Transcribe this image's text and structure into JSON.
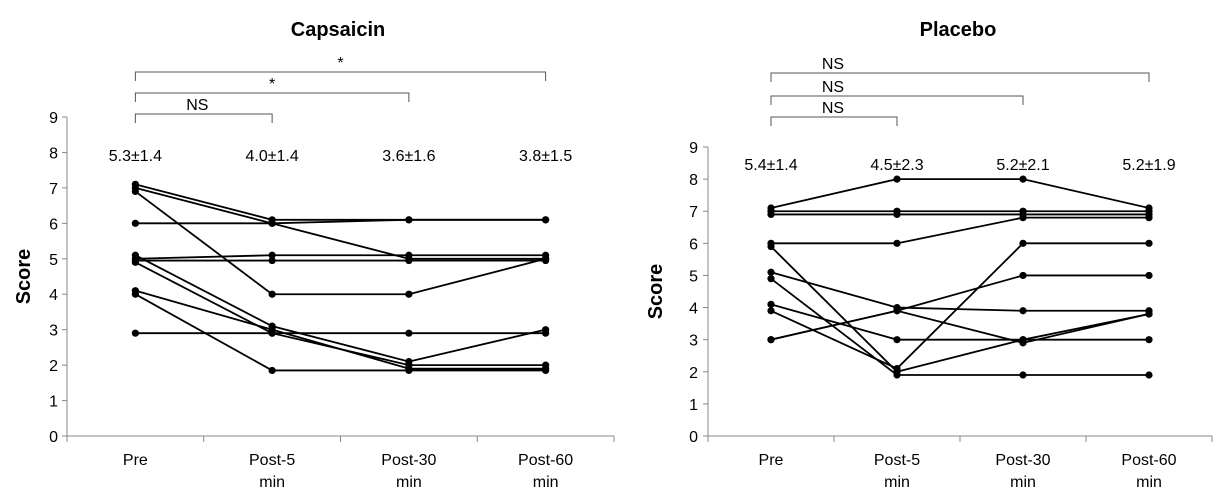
{
  "chart_data": [
    {
      "type": "line",
      "title": "Capsaicin",
      "ylabel": "Score",
      "xlabel": "",
      "categories": [
        "Pre",
        "Post-5 min",
        "Post-30 min",
        "Post-60 min"
      ],
      "category_lines": [
        [
          "Pre"
        ],
        [
          "Post-5",
          "min"
        ],
        [
          "Post-30",
          "min"
        ],
        [
          "Post-60",
          "min"
        ]
      ],
      "ylim": [
        0,
        9
      ],
      "yticks": [
        0,
        1,
        2,
        3,
        4,
        5,
        6,
        7,
        8,
        9
      ],
      "means": [
        "5.3±1.4",
        "4.0±1.4",
        "3.6±1.6",
        "3.8±1.5"
      ],
      "comparisons": [
        {
          "from": "Pre",
          "to": "Post-5 min",
          "label": "NS"
        },
        {
          "from": "Pre",
          "to": "Post-30 min",
          "label": "*"
        },
        {
          "from": "Pre",
          "to": "Post-60 min",
          "label": "*"
        }
      ],
      "series": [
        {
          "values": [
            7.1,
            6.1,
            6.1,
            6.1
          ]
        },
        {
          "values": [
            7.0,
            6.0,
            5.0,
            5.0
          ]
        },
        {
          "values": [
            6.9,
            4.0,
            4.0,
            5.0
          ]
        },
        {
          "values": [
            6.0,
            6.0,
            6.1,
            6.1
          ]
        },
        {
          "values": [
            5.1,
            3.1,
            2.1,
            3.0
          ]
        },
        {
          "values": [
            5.0,
            5.1,
            5.1,
            5.1
          ]
        },
        {
          "values": [
            4.95,
            4.95,
            4.95,
            4.95
          ]
        },
        {
          "values": [
            4.9,
            2.9,
            2.0,
            2.0
          ]
        },
        {
          "values": [
            4.1,
            3.0,
            1.9,
            1.9
          ]
        },
        {
          "values": [
            4.0,
            1.85,
            1.85,
            1.85
          ]
        },
        {
          "values": [
            2.9,
            2.9,
            2.9,
            2.9
          ]
        }
      ]
    },
    {
      "type": "line",
      "title": "Placebo",
      "ylabel": "Score",
      "xlabel": "",
      "categories": [
        "Pre",
        "Post-5 min",
        "Post-30 min",
        "Post-60 min"
      ],
      "category_lines": [
        [
          "Pre"
        ],
        [
          "Post-5",
          "min"
        ],
        [
          "Post-30",
          "min"
        ],
        [
          "Post-60",
          "min"
        ]
      ],
      "ylim": [
        0,
        9
      ],
      "yticks": [
        0,
        1,
        2,
        3,
        4,
        5,
        6,
        7,
        8,
        9
      ],
      "means": [
        "5.4±1.4",
        "4.5±2.3",
        "5.2±2.1",
        "5.2±1.9"
      ],
      "comparisons": [
        {
          "from": "Pre",
          "to": "Post-5 min",
          "label": "NS"
        },
        {
          "from": "Pre",
          "to": "Post-30 min",
          "label": "NS"
        },
        {
          "from": "Pre",
          "to": "Post-60 min",
          "label": "NS"
        }
      ],
      "series": [
        {
          "values": [
            7.1,
            8.0,
            8.0,
            7.1
          ]
        },
        {
          "values": [
            7.0,
            7.0,
            7.0,
            7.0
          ]
        },
        {
          "values": [
            6.9,
            6.9,
            6.9,
            6.9
          ]
        },
        {
          "values": [
            6.0,
            6.0,
            6.8,
            6.8
          ]
        },
        {
          "values": [
            5.9,
            2.0,
            3.0,
            3.0
          ]
        },
        {
          "values": [
            5.1,
            4.0,
            3.9,
            3.9
          ]
        },
        {
          "values": [
            4.9,
            1.9,
            1.9,
            1.9
          ]
        },
        {
          "values": [
            4.1,
            3.0,
            3.0,
            3.8
          ]
        },
        {
          "values": [
            3.9,
            2.1,
            6.0,
            6.0
          ]
        },
        {
          "values": [
            3.0,
            3.9,
            5.0,
            5.0
          ]
        },
        {
          "values": [
            3.0,
            3.9,
            2.9,
            3.8
          ]
        }
      ]
    }
  ]
}
